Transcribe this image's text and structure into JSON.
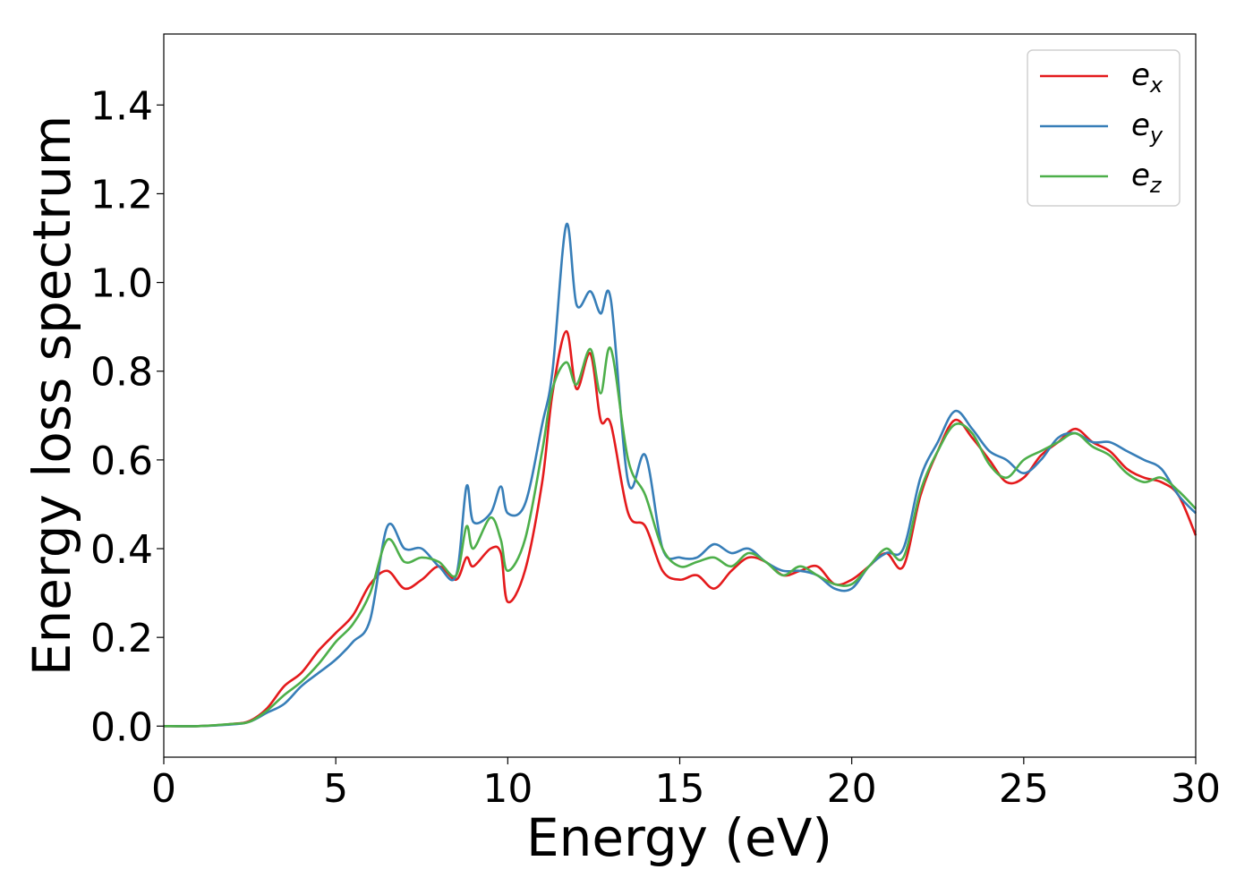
{
  "chart_data": {
    "type": "line",
    "title": "",
    "xlabel": "Energy (eV)",
    "ylabel": "Energy loss spectrum",
    "xlim": [
      0,
      30
    ],
    "ylim": [
      -0.07,
      1.56
    ],
    "xticks": [
      0,
      5,
      10,
      15,
      20,
      25,
      30
    ],
    "yticks": [
      0.0,
      0.2,
      0.4,
      0.6,
      0.8,
      1.0,
      1.2,
      1.4
    ],
    "grid": false,
    "legend_position": "top-right",
    "x": [
      0,
      1,
      2,
      2.5,
      3,
      3.5,
      4,
      4.5,
      5,
      5.5,
      6,
      6.5,
      7,
      7.5,
      8,
      8.5,
      8.8,
      9,
      9.5,
      9.8,
      10,
      10.5,
      11,
      11.3,
      11.7,
      12,
      12.4,
      12.7,
      13,
      13.5,
      14,
      14.5,
      15,
      15.5,
      16,
      16.5,
      17,
      17.5,
      18,
      18.5,
      19,
      19.5,
      20,
      20.5,
      21,
      21.5,
      22,
      22.5,
      23,
      23.5,
      24,
      24.5,
      25,
      25.5,
      26,
      26.5,
      27,
      27.5,
      28,
      28.5,
      29,
      29.5,
      30
    ],
    "series": [
      {
        "name": "e",
        "subscript": "x",
        "color": "#e41a1c",
        "values": [
          0.0,
          0.0,
          0.005,
          0.012,
          0.04,
          0.09,
          0.12,
          0.17,
          0.21,
          0.25,
          0.32,
          0.35,
          0.31,
          0.33,
          0.36,
          0.33,
          0.38,
          0.36,
          0.4,
          0.39,
          0.28,
          0.35,
          0.55,
          0.75,
          0.89,
          0.76,
          0.84,
          0.69,
          0.68,
          0.48,
          0.45,
          0.35,
          0.33,
          0.34,
          0.31,
          0.35,
          0.38,
          0.37,
          0.34,
          0.35,
          0.36,
          0.32,
          0.33,
          0.36,
          0.39,
          0.36,
          0.52,
          0.62,
          0.69,
          0.65,
          0.6,
          0.55,
          0.56,
          0.61,
          0.64,
          0.67,
          0.64,
          0.62,
          0.58,
          0.56,
          0.55,
          0.52,
          0.43
        ]
      },
      {
        "name": "e",
        "subscript": "y",
        "color": "#377eb8",
        "values": [
          0.0,
          0.0,
          0.004,
          0.01,
          0.03,
          0.05,
          0.09,
          0.12,
          0.15,
          0.19,
          0.24,
          0.45,
          0.4,
          0.4,
          0.36,
          0.34,
          0.54,
          0.46,
          0.48,
          0.54,
          0.48,
          0.5,
          0.68,
          0.8,
          1.13,
          0.95,
          0.98,
          0.93,
          0.96,
          0.55,
          0.61,
          0.4,
          0.38,
          0.38,
          0.41,
          0.39,
          0.4,
          0.37,
          0.35,
          0.35,
          0.34,
          0.31,
          0.31,
          0.36,
          0.39,
          0.4,
          0.56,
          0.64,
          0.71,
          0.67,
          0.62,
          0.6,
          0.57,
          0.6,
          0.65,
          0.66,
          0.64,
          0.64,
          0.62,
          0.6,
          0.58,
          0.52,
          0.48
        ]
      },
      {
        "name": "e",
        "subscript": "z",
        "color": "#4daf4a",
        "values": [
          0.0,
          0.0,
          0.005,
          0.01,
          0.035,
          0.07,
          0.1,
          0.14,
          0.19,
          0.23,
          0.3,
          0.42,
          0.37,
          0.38,
          0.37,
          0.34,
          0.45,
          0.4,
          0.47,
          0.42,
          0.35,
          0.42,
          0.62,
          0.76,
          0.82,
          0.77,
          0.85,
          0.75,
          0.85,
          0.6,
          0.52,
          0.4,
          0.36,
          0.37,
          0.38,
          0.36,
          0.39,
          0.37,
          0.34,
          0.36,
          0.34,
          0.32,
          0.32,
          0.36,
          0.4,
          0.38,
          0.53,
          0.62,
          0.68,
          0.66,
          0.59,
          0.56,
          0.6,
          0.62,
          0.64,
          0.66,
          0.63,
          0.61,
          0.57,
          0.55,
          0.56,
          0.53,
          0.49
        ]
      }
    ]
  }
}
